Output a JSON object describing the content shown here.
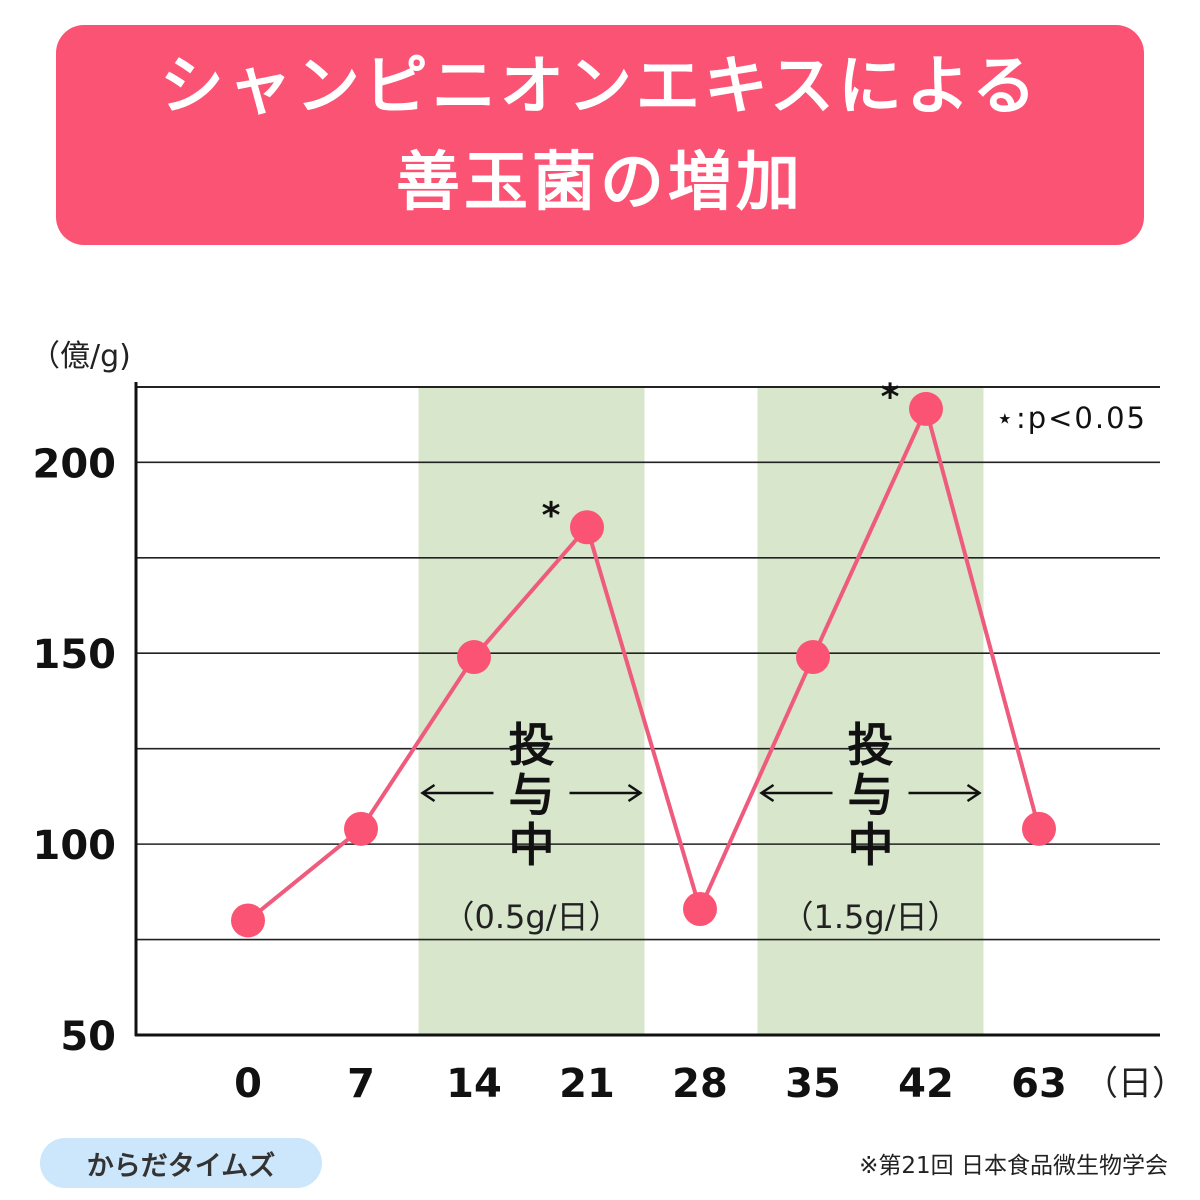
{
  "title": {
    "line1": "シャンピニオンエキスによる",
    "line2": "善玉菌の増加"
  },
  "chart_data": {
    "type": "line",
    "ylabel": "（億/g)",
    "xunit": "（日）",
    "ylim": [
      50,
      220
    ],
    "yticks": [
      50,
      100,
      150,
      200
    ],
    "categories": [
      "0",
      "7",
      "14",
      "21",
      "28",
      "35",
      "42",
      "63"
    ],
    "values": [
      80,
      104,
      149,
      183,
      83,
      149,
      214,
      104
    ],
    "significant": [
      "21",
      "42"
    ],
    "significance_marker": "*",
    "grid": "horizontal",
    "shaded_periods": [
      {
        "from": "14",
        "to": "21",
        "label_chars": [
          "投",
          "与",
          "中"
        ],
        "dose": "（0.5g/日）"
      },
      {
        "from": "35",
        "to": "42",
        "label_chars": [
          "投",
          "与",
          "中"
        ],
        "dose": "（1.5g/日）"
      }
    ],
    "legend": "⋆:p<0.05",
    "colors": {
      "line": "#ef5b7c",
      "marker": "#fb5373",
      "shade": "#d8e6cc",
      "grid": "#222222"
    }
  },
  "footer": {
    "brand": "からだタイムズ",
    "source": "※第21回 日本食品微生物学会"
  }
}
